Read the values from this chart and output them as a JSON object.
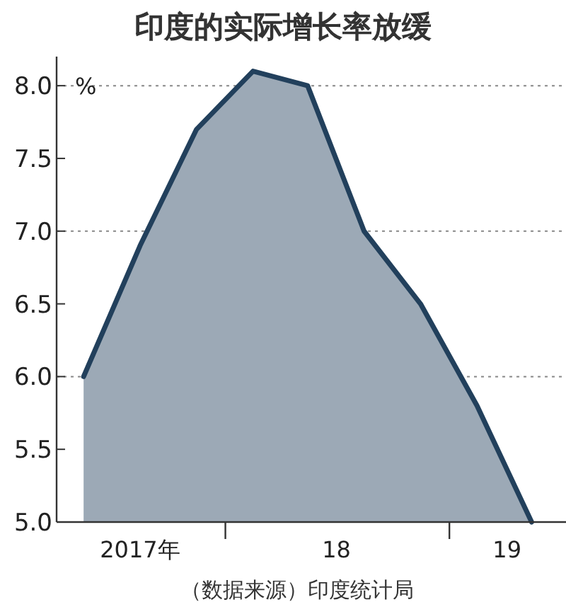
{
  "chart_data": {
    "type": "area",
    "title": "印度的实际增长率放缓",
    "ylabel": "%",
    "x": [
      "2017-05-15",
      "2017-08-15",
      "2017-11-15",
      "2018-02-15",
      "2018-05-15",
      "2018-08-15",
      "2018-11-15",
      "2019-02-15",
      "2019-05-15"
    ],
    "series": [
      {
        "color": "#22405c",
        "values": [
          6.0,
          6.9,
          7.7,
          8.1,
          8.0,
          7.0,
          6.5,
          5.8,
          5.0
        ]
      }
    ],
    "xlim": [
      "2017-04-01",
      "2019-07-10"
    ],
    "xticks": [
      {
        "value": "2017-08-15",
        "label": "2017年"
      },
      {
        "value": "2018-01-01",
        "label": null
      },
      {
        "value": "2018-07-01",
        "label": "18"
      },
      {
        "value": "2019-01-01",
        "label": null
      },
      {
        "value": "2019-04-05",
        "label": "19"
      }
    ],
    "ylim": [
      5.0,
      8.2
    ],
    "yticks": [
      {
        "value": 5.0,
        "label": "5.0"
      },
      {
        "value": 5.5,
        "label": "5.5"
      },
      {
        "value": 6.0,
        "label": "6.0"
      },
      {
        "value": 6.5,
        "label": "6.5"
      },
      {
        "value": 7.0,
        "label": "7.0"
      },
      {
        "value": 7.5,
        "label": "7.5"
      },
      {
        "value": 8.0,
        "label": "8.0"
      }
    ],
    "ref_lines": [
      {
        "axis": "y",
        "value": 6.0,
        "line_style": "dotted",
        "color": "#888888"
      },
      {
        "axis": "y",
        "value": 7.0,
        "line_style": "dotted",
        "color": "#888888"
      },
      {
        "axis": "y",
        "value": 8.0,
        "line_style": "dotted",
        "color": "#888888"
      }
    ],
    "annotations": [
      "（数据来源）印度统计局"
    ]
  }
}
